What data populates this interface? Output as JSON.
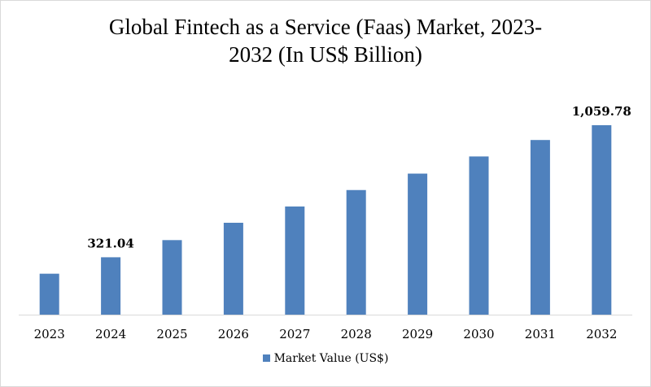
{
  "chart_data": {
    "type": "bar",
    "title_lines": [
      "Global Fintech as a Service (Faas) Market, 2023-",
      "2032 (In US$ Billion)"
    ],
    "categories": [
      "2023",
      "2024",
      "2025",
      "2026",
      "2027",
      "2028",
      "2029",
      "2030",
      "2031",
      "2032"
    ],
    "series": [
      {
        "name": "Market Value (US$)",
        "color": "#4f81bd",
        "values": [
          229,
          321.04,
          417,
          514,
          605,
          697,
          789,
          885,
          977,
          1059.78
        ]
      }
    ],
    "data_labels": [
      {
        "index": 1,
        "text": "321.04"
      },
      {
        "index": 9,
        "text": "1,059.78"
      }
    ],
    "ylim": [
      0,
      1059.78
    ],
    "grid": false,
    "legend": "bottom"
  }
}
